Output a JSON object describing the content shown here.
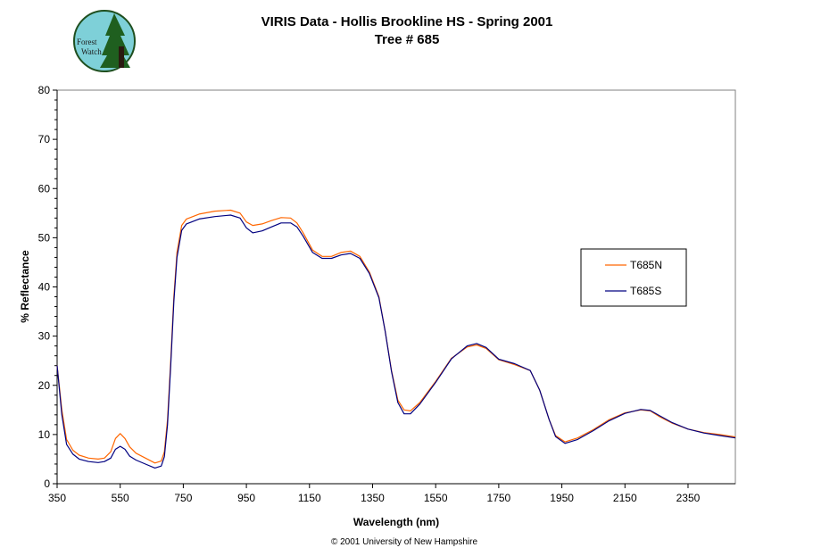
{
  "colors": {
    "series_n": "#ff6600",
    "series_s": "#000080",
    "logo_bg": "#7ed0d8",
    "logo_tree": "#1f5f1f",
    "logo_trunk": "#2a1a10"
  },
  "logo": {
    "line1": "Forest",
    "line2": "Watch"
  },
  "footer": {
    "copyright": "© 2001 University of New Hampshire"
  },
  "chart_data": {
    "type": "line",
    "title": "VIRIS Data - Hollis Brookline HS - Spring 2001",
    "subtitle": "Tree # 685",
    "xlabel": "Wavelength (nm)",
    "ylabel": "% Reflectance",
    "xlim": [
      350,
      2500
    ],
    "ylim": [
      0,
      80
    ],
    "x_ticks": [
      "350",
      "550",
      "750",
      "950",
      "1150",
      "1350",
      "1550",
      "1750",
      "1950",
      "2150",
      "2350"
    ],
    "y_ticks": [
      "0",
      "10",
      "20",
      "30",
      "40",
      "50",
      "60",
      "70",
      "80"
    ],
    "grid": false,
    "legend_position": "right",
    "series": [
      {
        "name": "T685N",
        "points": [
          [
            350,
            24
          ],
          [
            365,
            15
          ],
          [
            380,
            9
          ],
          [
            400,
            6.8
          ],
          [
            420,
            5.8
          ],
          [
            450,
            5.2
          ],
          [
            480,
            5.0
          ],
          [
            500,
            5.2
          ],
          [
            520,
            6.5
          ],
          [
            535,
            9.2
          ],
          [
            550,
            10.2
          ],
          [
            565,
            9.2
          ],
          [
            580,
            7.5
          ],
          [
            600,
            6.2
          ],
          [
            630,
            5.2
          ],
          [
            660,
            4.2
          ],
          [
            680,
            4.6
          ],
          [
            690,
            6.5
          ],
          [
            700,
            13
          ],
          [
            710,
            25
          ],
          [
            720,
            38
          ],
          [
            730,
            47
          ],
          [
            745,
            52.5
          ],
          [
            760,
            53.8
          ],
          [
            800,
            54.8
          ],
          [
            850,
            55.4
          ],
          [
            900,
            55.6
          ],
          [
            930,
            55
          ],
          [
            950,
            53.2
          ],
          [
            970,
            52.5
          ],
          [
            1000,
            52.8
          ],
          [
            1030,
            53.5
          ],
          [
            1060,
            54.1
          ],
          [
            1090,
            54
          ],
          [
            1110,
            53
          ],
          [
            1130,
            51
          ],
          [
            1160,
            47.5
          ],
          [
            1190,
            46.2
          ],
          [
            1220,
            46.2
          ],
          [
            1250,
            47
          ],
          [
            1280,
            47.3
          ],
          [
            1310,
            46.2
          ],
          [
            1340,
            43
          ],
          [
            1370,
            38
          ],
          [
            1390,
            31
          ],
          [
            1410,
            23
          ],
          [
            1430,
            17
          ],
          [
            1450,
            15
          ],
          [
            1470,
            14.8
          ],
          [
            1500,
            16.5
          ],
          [
            1550,
            20.8
          ],
          [
            1600,
            25.5
          ],
          [
            1650,
            27.8
          ],
          [
            1680,
            28.2
          ],
          [
            1710,
            27.5
          ],
          [
            1750,
            25.2
          ],
          [
            1800,
            24.2
          ],
          [
            1850,
            23
          ],
          [
            1880,
            19
          ],
          [
            1910,
            13
          ],
          [
            1930,
            9.8
          ],
          [
            1960,
            8.5
          ],
          [
            2000,
            9.3
          ],
          [
            2050,
            11
          ],
          [
            2100,
            13
          ],
          [
            2150,
            14.4
          ],
          [
            2200,
            15
          ],
          [
            2230,
            14.8
          ],
          [
            2260,
            13.6
          ],
          [
            2300,
            12.3
          ],
          [
            2350,
            11.1
          ],
          [
            2400,
            10.4
          ],
          [
            2450,
            10
          ],
          [
            2500,
            9.5
          ]
        ]
      },
      {
        "name": "T685S",
        "points": [
          [
            350,
            24
          ],
          [
            365,
            14
          ],
          [
            380,
            8
          ],
          [
            400,
            6
          ],
          [
            420,
            5
          ],
          [
            450,
            4.5
          ],
          [
            480,
            4.3
          ],
          [
            500,
            4.5
          ],
          [
            520,
            5.2
          ],
          [
            535,
            7.0
          ],
          [
            550,
            7.6
          ],
          [
            565,
            7.0
          ],
          [
            580,
            5.6
          ],
          [
            600,
            4.8
          ],
          [
            630,
            4.0
          ],
          [
            660,
            3.2
          ],
          [
            680,
            3.6
          ],
          [
            690,
            5.5
          ],
          [
            700,
            12
          ],
          [
            710,
            24
          ],
          [
            720,
            37
          ],
          [
            730,
            46
          ],
          [
            745,
            51.5
          ],
          [
            760,
            52.8
          ],
          [
            800,
            53.8
          ],
          [
            850,
            54.3
          ],
          [
            900,
            54.6
          ],
          [
            930,
            54
          ],
          [
            950,
            52
          ],
          [
            970,
            51
          ],
          [
            1000,
            51.4
          ],
          [
            1030,
            52.2
          ],
          [
            1060,
            53
          ],
          [
            1090,
            53
          ],
          [
            1110,
            52.2
          ],
          [
            1130,
            50.3
          ],
          [
            1160,
            47
          ],
          [
            1190,
            45.8
          ],
          [
            1220,
            45.8
          ],
          [
            1250,
            46.5
          ],
          [
            1280,
            46.8
          ],
          [
            1310,
            45.8
          ],
          [
            1340,
            42.7
          ],
          [
            1370,
            37.8
          ],
          [
            1390,
            31
          ],
          [
            1410,
            22.8
          ],
          [
            1430,
            16.5
          ],
          [
            1450,
            14.2
          ],
          [
            1470,
            14.2
          ],
          [
            1500,
            16.2
          ],
          [
            1550,
            20.6
          ],
          [
            1600,
            25.4
          ],
          [
            1650,
            28
          ],
          [
            1680,
            28.5
          ],
          [
            1710,
            27.7
          ],
          [
            1750,
            25.3
          ],
          [
            1800,
            24.4
          ],
          [
            1850,
            23
          ],
          [
            1880,
            19
          ],
          [
            1910,
            13
          ],
          [
            1930,
            9.6
          ],
          [
            1960,
            8.2
          ],
          [
            2000,
            9
          ],
          [
            2050,
            10.8
          ],
          [
            2100,
            12.8
          ],
          [
            2150,
            14.3
          ],
          [
            2200,
            15.1
          ],
          [
            2230,
            14.9
          ],
          [
            2260,
            13.8
          ],
          [
            2300,
            12.4
          ],
          [
            2350,
            11.1
          ],
          [
            2400,
            10.3
          ],
          [
            2450,
            9.8
          ],
          [
            2500,
            9.3
          ]
        ]
      }
    ]
  }
}
